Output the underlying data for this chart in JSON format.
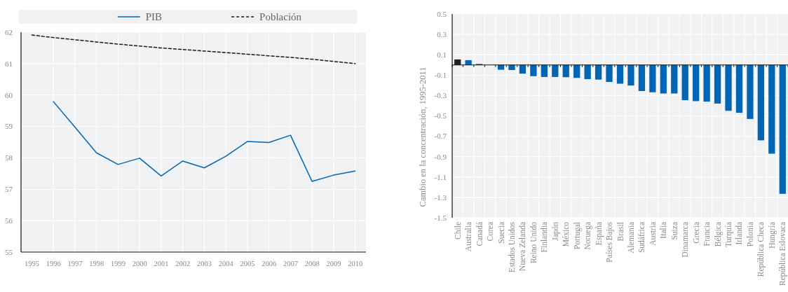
{
  "chart_data": [
    {
      "type": "line",
      "categories": [
        "1995",
        "1996",
        "1997",
        "1998",
        "1999",
        "2000",
        "2001",
        "2002",
        "2003",
        "2004",
        "2005",
        "2006",
        "2007",
        "2008",
        "2009",
        "2010"
      ],
      "series": [
        {
          "name": "PIB",
          "color": "#0066b3",
          "line_style": "solid",
          "values": [
            null,
            59.79,
            58.98,
            58.16,
            57.79,
            57.99,
            57.42,
            57.9,
            57.68,
            58.05,
            58.52,
            58.49,
            58.72,
            57.25,
            57.45,
            57.58
          ]
        },
        {
          "name": "Población",
          "color": "#1a1a1a",
          "line_style": "dashed",
          "values": [
            61.91,
            61.83,
            61.76,
            61.69,
            61.62,
            61.56,
            61.5,
            61.45,
            61.4,
            61.35,
            61.3,
            61.25,
            61.2,
            61.14,
            61.07,
            61.0
          ]
        }
      ],
      "ylim": [
        55,
        62
      ],
      "yticks": [
        55,
        56,
        57,
        58,
        59,
        60,
        61,
        62
      ],
      "grid": true,
      "legend": "top"
    },
    {
      "type": "bar",
      "ylabel": "Cambio en la concentración, 1995-2011",
      "categories": [
        "Chile",
        "Australia",
        "Canadá",
        "Corea",
        "Suecia",
        "Estados Unidos",
        "Nueva Zelanda",
        "Reino Unido",
        "Finlandia",
        "Japón",
        "México",
        "Portugal",
        "Noruega",
        "España",
        "Países Bajos",
        "Brasil",
        "Alemania",
        "Sudáfrica",
        "Austria",
        "Italia",
        "Suiza",
        "Dinamarca",
        "Grecia",
        "Francia",
        "Bélgica",
        "Turquía",
        "Irlanda",
        "Polonia",
        "República Checa",
        "Hungría",
        "República Eslovaca"
      ],
      "values": [
        0.054,
        0.047,
        0.01,
        0,
        -0.047,
        -0.05,
        -0.085,
        -0.11,
        -0.118,
        -0.118,
        -0.12,
        -0.127,
        -0.139,
        -0.144,
        -0.167,
        -0.184,
        -0.202,
        -0.256,
        -0.268,
        -0.28,
        -0.28,
        -0.346,
        -0.355,
        -0.36,
        -0.379,
        -0.45,
        -0.47,
        -0.53,
        -0.74,
        -0.871,
        -1.265
      ],
      "colors": [
        "#231f20",
        "#0066b3",
        "#0066b3",
        "#0066b3",
        "#0066b3",
        "#0066b3",
        "#0066b3",
        "#0066b3",
        "#0066b3",
        "#0066b3",
        "#0066b3",
        "#0066b3",
        "#0066b3",
        "#0066b3",
        "#0066b3",
        "#0066b3",
        "#0066b3",
        "#0066b3",
        "#0066b3",
        "#0066b3",
        "#0066b3",
        "#0066b3",
        "#0066b3",
        "#0066b3",
        "#0066b3",
        "#0066b3",
        "#0066b3",
        "#0066b3",
        "#0066b3",
        "#0066b3",
        "#0066b3"
      ],
      "ylim": [
        -1.5,
        0.5
      ],
      "yticks": [
        -1.5,
        -1.3,
        -1.1,
        -0.9,
        -0.7,
        -0.5,
        -0.3,
        -0.1,
        0.1,
        0.3,
        0.5
      ],
      "grid": true
    }
  ]
}
